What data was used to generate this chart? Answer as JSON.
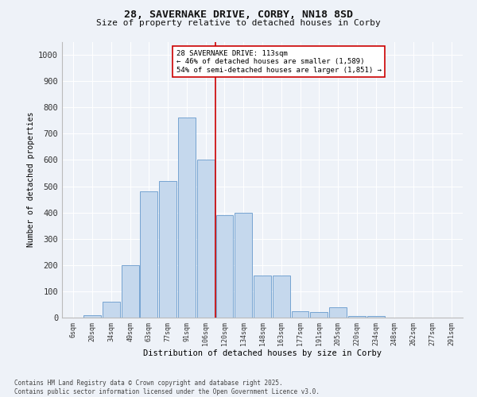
{
  "title": "28, SAVERNAKE DRIVE, CORBY, NN18 8SD",
  "subtitle": "Size of property relative to detached houses in Corby",
  "xlabel": "Distribution of detached houses by size in Corby",
  "ylabel": "Number of detached properties",
  "bar_color": "#c5d8ed",
  "bar_edge_color": "#6699cc",
  "background_color": "#eef2f8",
  "grid_color": "#ffffff",
  "annotation_line_color": "#cc0000",
  "annotation_box_color": "#cc0000",
  "annotation_text": "28 SAVERNAKE DRIVE: 113sqm\n← 46% of detached houses are smaller (1,589)\n54% of semi-detached houses are larger (1,851) →",
  "categories": [
    "6sqm",
    "20sqm",
    "34sqm",
    "49sqm",
    "63sqm",
    "77sqm",
    "91sqm",
    "106sqm",
    "120sqm",
    "134sqm",
    "148sqm",
    "163sqm",
    "177sqm",
    "191sqm",
    "205sqm",
    "220sqm",
    "234sqm",
    "248sqm",
    "262sqm",
    "277sqm",
    "291sqm"
  ],
  "values": [
    0,
    10,
    60,
    200,
    480,
    520,
    760,
    600,
    390,
    400,
    160,
    160,
    25,
    20,
    40,
    5,
    5,
    0,
    0,
    0,
    0
  ],
  "ylim": [
    0,
    1050
  ],
  "yticks": [
    0,
    100,
    200,
    300,
    400,
    500,
    600,
    700,
    800,
    900,
    1000
  ],
  "red_line_index": 7.5,
  "footnote": "Contains HM Land Registry data © Crown copyright and database right 2025.\nContains public sector information licensed under the Open Government Licence v3.0."
}
